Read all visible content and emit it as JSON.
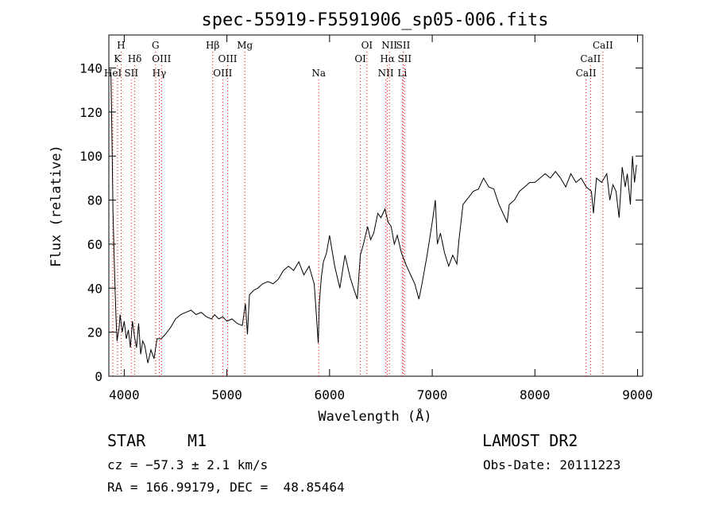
{
  "chart_data": {
    "type": "line",
    "title": "spec-55919-F5591906_sp05-006.fits",
    "xlabel": "Wavelength (Å)",
    "ylabel": "Flux (relative)",
    "xlim": [
      3850,
      9050
    ],
    "ylim": [
      0,
      155
    ],
    "xticks": [
      4000,
      5000,
      6000,
      7000,
      8000,
      9000
    ],
    "yticks": [
      0,
      20,
      40,
      60,
      80,
      100,
      120,
      140
    ],
    "grid": false,
    "line_color": "#000000",
    "marker_color": "#ff0000",
    "series": [
      {
        "x": [
          3870,
          3880,
          3890,
          3900,
          3910,
          3920,
          3930,
          3950,
          3960,
          3980,
          4000,
          4020,
          4040,
          4060,
          4080,
          4100,
          4120,
          4140,
          4160,
          4180,
          4200,
          4230,
          4260,
          4290,
          4320,
          4360,
          4400,
          4450,
          4500,
          4550,
          4600,
          4650,
          4700,
          4750,
          4800,
          4850,
          4880,
          4920,
          4960,
          5000,
          5050,
          5100,
          5150,
          5180,
          5200,
          5220,
          5260,
          5300,
          5350,
          5400,
          5450,
          5500,
          5550,
          5600,
          5650,
          5700,
          5750,
          5800,
          5850,
          5870,
          5890,
          5900,
          5920,
          5940,
          5970,
          6000,
          6050,
          6100,
          6150,
          6200,
          6240,
          6270,
          6300,
          6330,
          6370,
          6400,
          6430,
          6470,
          6500,
          6540,
          6570,
          6600,
          6630,
          6660,
          6700,
          6750,
          6800,
          6830,
          6870,
          6900,
          6950,
          7000,
          7030,
          7050,
          7080,
          7120,
          7160,
          7200,
          7240,
          7260,
          7280,
          7300,
          7350,
          7400,
          7450,
          7500,
          7550,
          7600,
          7650,
          7700,
          7730,
          7750,
          7800,
          7850,
          7900,
          7950,
          8000,
          8050,
          8100,
          8150,
          8200,
          8250,
          8300,
          8350,
          8400,
          8450,
          8500,
          8550,
          8570,
          8600,
          8650,
          8700,
          8730,
          8760,
          8790,
          8820,
          8850,
          8880,
          8900,
          8930,
          8950,
          8970,
          8990
        ],
        "values": [
          138,
          110,
          75,
          57,
          40,
          27,
          16,
          22,
          28,
          20,
          25,
          17,
          21,
          13,
          25,
          18,
          13,
          24,
          10,
          16,
          14,
          6,
          12,
          8,
          17,
          17,
          19,
          22,
          26,
          28,
          29,
          30,
          28,
          29,
          27,
          26,
          28,
          26,
          27,
          25,
          26,
          24,
          23,
          33,
          19,
          37,
          39,
          40,
          42,
          43,
          42,
          44,
          48,
          50,
          48,
          52,
          46,
          50,
          42,
          29,
          15,
          33,
          45,
          52,
          56,
          64,
          50,
          40,
          55,
          45,
          39,
          35,
          55,
          60,
          68,
          62,
          65,
          74,
          72,
          76,
          70,
          68,
          60,
          64,
          56,
          50,
          45,
          42,
          35,
          42,
          55,
          70,
          80,
          60,
          65,
          56,
          50,
          55,
          51,
          62,
          70,
          78,
          81,
          84,
          85,
          90,
          86,
          85,
          78,
          73,
          70,
          78,
          80,
          84,
          86,
          88,
          88,
          90,
          92,
          90,
          93,
          90,
          86,
          92,
          88,
          90,
          86,
          84,
          74,
          90,
          88,
          92,
          80,
          87,
          84,
          72,
          95,
          86,
          92,
          78,
          100,
          88,
          96
        ]
      }
    ],
    "line_markers": [
      {
        "label": "H",
        "x": 3969,
        "row": 0
      },
      {
        "label": "K",
        "x": 3934,
        "row": 1
      },
      {
        "label": "HeI",
        "x": 3889,
        "row": 2
      },
      {
        "label": "Hδ",
        "x": 4102,
        "row": 1
      },
      {
        "label": "SII",
        "x": 4069,
        "row": 2
      },
      {
        "label": "G",
        "x": 4305,
        "row": 0
      },
      {
        "label": "OIII",
        "x": 4363,
        "row": 1
      },
      {
        "label": "Hγ",
        "x": 4341,
        "row": 2
      },
      {
        "label": "Hβ",
        "x": 4861,
        "row": 0
      },
      {
        "label": "OIII",
        "x": 5007,
        "row": 1
      },
      {
        "label": "OIII",
        "x": 4959,
        "row": 2
      },
      {
        "label": "Mg",
        "x": 5175,
        "row": 0
      },
      {
        "label": "Na",
        "x": 5894,
        "row": 2
      },
      {
        "label": "OI",
        "x": 6364,
        "row": 0
      },
      {
        "label": "OI",
        "x": 6300,
        "row": 1
      },
      {
        "label": "NII",
        "x": 6583,
        "row": 0
      },
      {
        "label": "SII",
        "x": 6717,
        "row": 0
      },
      {
        "label": "Hα",
        "x": 6563,
        "row": 1
      },
      {
        "label": "SII",
        "x": 6731,
        "row": 1
      },
      {
        "label": "NII",
        "x": 6548,
        "row": 2
      },
      {
        "label": "Li",
        "x": 6708,
        "row": 2
      },
      {
        "label": "CaII",
        "x": 8662,
        "row": 0
      },
      {
        "label": "CaII",
        "x": 8542,
        "row": 1
      },
      {
        "label": "CaII",
        "x": 8498,
        "row": 2
      }
    ]
  },
  "info": {
    "object_class": "STAR",
    "subclass": "M1",
    "survey": "LAMOST DR2",
    "redshift": "cz = −57.3 ± 2.1 km/s",
    "obs_date": "Obs-Date: 20111223",
    "coordinates": "RA = 166.99179, DEC =  48.85464"
  }
}
